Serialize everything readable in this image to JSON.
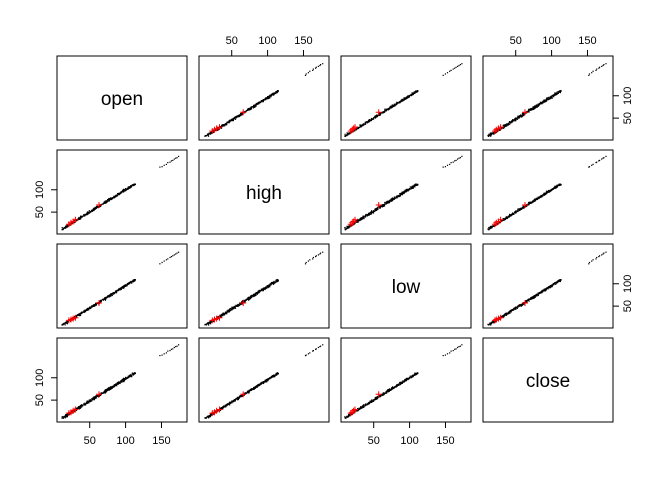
{
  "chart_data": {
    "type": "scatter",
    "subtype": "pairs-matrix",
    "variables": [
      "open",
      "high",
      "low",
      "close"
    ],
    "axis_range": [
      10,
      180
    ],
    "tick_values": [
      50,
      100,
      150
    ],
    "tick_labels": [
      "50",
      "100",
      "150"
    ],
    "point_color": "#000000",
    "highlight_color": "#ff0000",
    "highlight_marker": "plus",
    "bulk_points": {
      "count": 420,
      "description": "dense band along the diagonal, roughly 10 to 115 on each axis"
    },
    "outlier_cluster": [
      [
        147,
        151
      ],
      [
        150,
        152
      ],
      [
        153,
        155
      ],
      [
        156,
        157
      ],
      [
        158,
        161
      ],
      [
        161,
        162
      ],
      [
        163,
        165
      ],
      [
        165,
        166
      ],
      [
        167,
        169
      ],
      [
        169,
        171
      ],
      [
        171,
        172
      ],
      [
        173,
        175
      ]
    ],
    "highlight_points": {
      "open": [
        21,
        24,
        27,
        30,
        63
      ],
      "high": [
        23,
        26,
        29,
        33,
        66
      ],
      "low": [
        18,
        20,
        22,
        24,
        57
      ],
      "close": [
        21,
        23,
        26,
        29,
        63
      ]
    }
  }
}
